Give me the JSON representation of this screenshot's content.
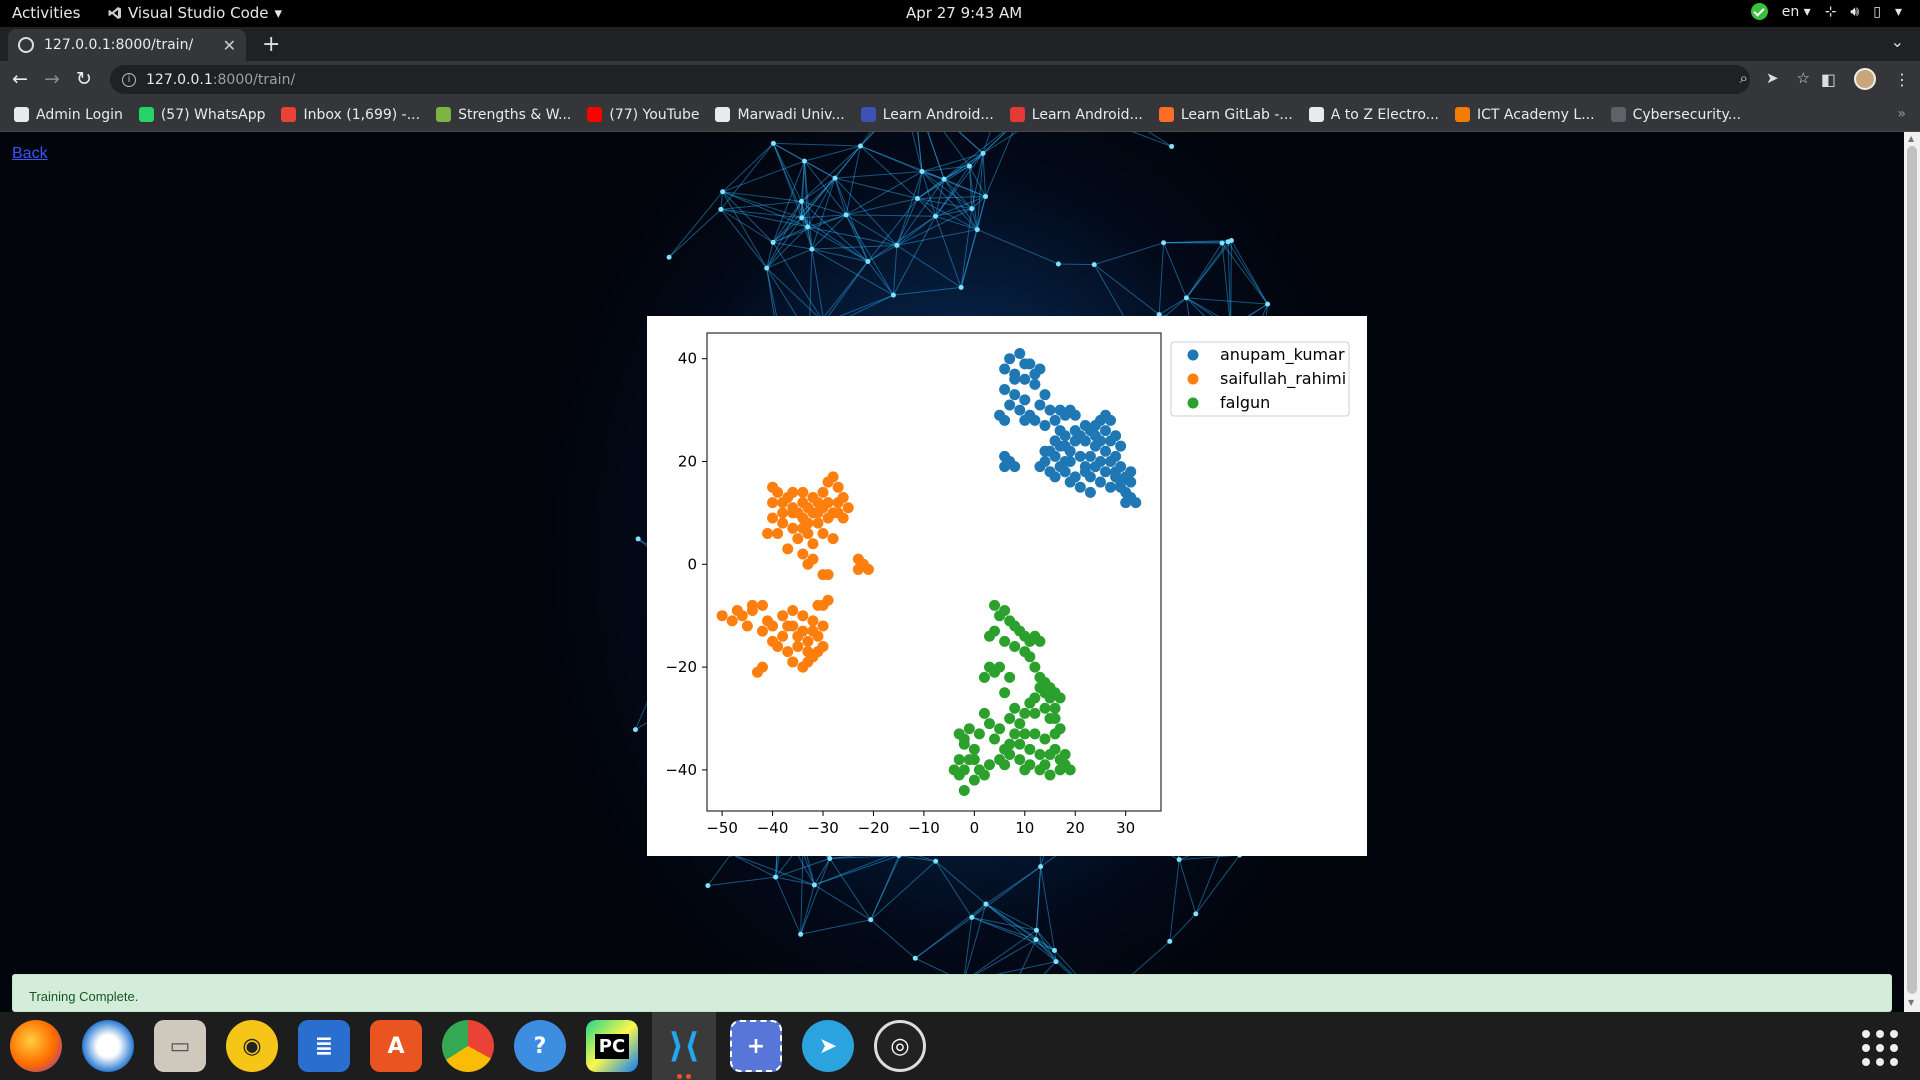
{
  "topbar": {
    "activities": "Activities",
    "app_name": "Visual Studio Code",
    "clock": "Apr 27  9:43 AM",
    "lang": "en"
  },
  "browser": {
    "tab_title": "127.0.0.1:8000/train/",
    "url_host": "127.0.0.1",
    "url_path": ":8000/train/",
    "bookmarks": [
      {
        "label": "Admin Login",
        "color": "#e8eaed"
      },
      {
        "label": "(57) WhatsApp",
        "color": "#25d366"
      },
      {
        "label": "Inbox (1,699) -...",
        "color": "#ea4335"
      },
      {
        "label": "Strengths & W...",
        "color": "#7cb342"
      },
      {
        "label": "(77) YouTube",
        "color": "#ff0000"
      },
      {
        "label": "Marwadi Univ...",
        "color": "#e8eaed"
      },
      {
        "label": "Learn Android...",
        "color": "#3f51b5"
      },
      {
        "label": "Learn Android...",
        "color": "#e53935"
      },
      {
        "label": "Learn GitLab -...",
        "color": "#fc6d26"
      },
      {
        "label": "A to Z Electro...",
        "color": "#e8eaed"
      },
      {
        "label": "ICT Academy L...",
        "color": "#f57c00"
      },
      {
        "label": "Cybersecurity...",
        "color": "#5f6368"
      }
    ]
  },
  "page": {
    "back_label": "Back",
    "alert": "Training Complete."
  },
  "chart_data": {
    "type": "scatter",
    "title": "",
    "xlabel": "",
    "ylabel": "",
    "xlim": [
      -53,
      37
    ],
    "ylim": [
      -48,
      45
    ],
    "xticks": [
      -50,
      -40,
      -30,
      -20,
      -10,
      0,
      10,
      20,
      30
    ],
    "yticks": [
      -40,
      -20,
      0,
      20,
      40
    ],
    "xtick_labels": [
      "−50",
      "−40",
      "−30",
      "−20",
      "−10",
      "0",
      "10",
      "20",
      "30"
    ],
    "ytick_labels": [
      "−40",
      "−20",
      "0",
      "20",
      "40"
    ],
    "legend_position": "outside-right",
    "grid": false,
    "series": [
      {
        "name": "anupam_kumar",
        "color": "#1f77b4",
        "points": [
          [
            7,
            40
          ],
          [
            9,
            41
          ],
          [
            11,
            39
          ],
          [
            13,
            38
          ],
          [
            8,
            37
          ],
          [
            10,
            36
          ],
          [
            12,
            35
          ],
          [
            6,
            34
          ],
          [
            8,
            33
          ],
          [
            10,
            32
          ],
          [
            7,
            31
          ],
          [
            9,
            30
          ],
          [
            11,
            29
          ],
          [
            13,
            31
          ],
          [
            14,
            33
          ],
          [
            15,
            30
          ],
          [
            16,
            28
          ],
          [
            17,
            30
          ],
          [
            18,
            29
          ],
          [
            19,
            30
          ],
          [
            20,
            29
          ],
          [
            14,
            27
          ],
          [
            12,
            28
          ],
          [
            10,
            28
          ],
          [
            6,
            28
          ],
          [
            5,
            29
          ],
          [
            8,
            36
          ],
          [
            6,
            38
          ],
          [
            10,
            39
          ],
          [
            12,
            37
          ],
          [
            6,
            21
          ],
          [
            7,
            20
          ],
          [
            8,
            19
          ],
          [
            6,
            19
          ],
          [
            15,
            22
          ],
          [
            16,
            21
          ],
          [
            17,
            23
          ],
          [
            18,
            20
          ],
          [
            19,
            22
          ],
          [
            20,
            24
          ],
          [
            21,
            25
          ],
          [
            22,
            24
          ],
          [
            23,
            26
          ],
          [
            24,
            27
          ],
          [
            25,
            28
          ],
          [
            26,
            26
          ],
          [
            27,
            24
          ],
          [
            26,
            22
          ],
          [
            25,
            20
          ],
          [
            24,
            19
          ],
          [
            22,
            18
          ],
          [
            20,
            17
          ],
          [
            19,
            16
          ],
          [
            21,
            15
          ],
          [
            23,
            14
          ],
          [
            25,
            16
          ],
          [
            27,
            15
          ],
          [
            28,
            17
          ],
          [
            29,
            16
          ],
          [
            30,
            14
          ],
          [
            31,
            13
          ],
          [
            32,
            12
          ],
          [
            30,
            12
          ],
          [
            29,
            15
          ],
          [
            28,
            18
          ],
          [
            30,
            17
          ],
          [
            31,
            16
          ],
          [
            18,
            18
          ],
          [
            17,
            19
          ],
          [
            16,
            17
          ],
          [
            15,
            18
          ],
          [
            14,
            20
          ],
          [
            13,
            19
          ],
          [
            14,
            22
          ],
          [
            16,
            24
          ],
          [
            18,
            25
          ],
          [
            20,
            26
          ],
          [
            22,
            27
          ],
          [
            24,
            25
          ],
          [
            26,
            29
          ],
          [
            27,
            28
          ],
          [
            28,
            25
          ],
          [
            29,
            23
          ],
          [
            23,
            21
          ],
          [
            24,
            23
          ],
          [
            21,
            21
          ],
          [
            22,
            19
          ],
          [
            18,
            23
          ],
          [
            19,
            20
          ],
          [
            17,
            26
          ],
          [
            25,
            24
          ],
          [
            26,
            18
          ],
          [
            27,
            20
          ],
          [
            28,
            21
          ],
          [
            23,
            17
          ],
          [
            31,
            18
          ],
          [
            29,
            19
          ]
        ]
      },
      {
        "name": "saifullah_rahimi",
        "color": "#ff7f0e",
        "points": [
          [
            -40,
            15
          ],
          [
            -39,
            14
          ],
          [
            -38,
            12
          ],
          [
            -37,
            13
          ],
          [
            -36,
            11
          ],
          [
            -35,
            10
          ],
          [
            -34,
            9
          ],
          [
            -33,
            8
          ],
          [
            -32,
            10
          ],
          [
            -31,
            12
          ],
          [
            -30,
            14
          ],
          [
            -29,
            16
          ],
          [
            -28,
            17
          ],
          [
            -27,
            15
          ],
          [
            -26,
            13
          ],
          [
            -25,
            11
          ],
          [
            -27,
            10
          ],
          [
            -29,
            9
          ],
          [
            -31,
            8
          ],
          [
            -33,
            6
          ],
          [
            -35,
            5
          ],
          [
            -36,
            7
          ],
          [
            -38,
            8
          ],
          [
            -40,
            9
          ],
          [
            -41,
            6
          ],
          [
            -39,
            6
          ],
          [
            -37,
            3
          ],
          [
            -34,
            2
          ],
          [
            -32,
            1
          ],
          [
            -30,
            -2
          ],
          [
            -29,
            -2
          ],
          [
            -33,
            0
          ],
          [
            -23,
            1
          ],
          [
            -22,
            0
          ],
          [
            -21,
            -1
          ],
          [
            -23,
            -1
          ],
          [
            -36,
            10
          ],
          [
            -34,
            12
          ],
          [
            -32,
            13
          ],
          [
            -30,
            11
          ],
          [
            -28,
            10
          ],
          [
            -26,
            9
          ],
          [
            -34,
            7
          ],
          [
            -30,
            6
          ],
          [
            -28,
            5
          ],
          [
            -32,
            4
          ],
          [
            -34,
            14
          ],
          [
            -36,
            14
          ],
          [
            -33,
            11
          ],
          [
            -31,
            10
          ],
          [
            -29,
            12
          ],
          [
            -27,
            12
          ],
          [
            -38,
            10
          ],
          [
            -40,
            12
          ],
          [
            -42,
            -8
          ],
          [
            -44,
            -9
          ],
          [
            -46,
            -10
          ],
          [
            -48,
            -11
          ],
          [
            -50,
            -10
          ],
          [
            -45,
            -12
          ],
          [
            -42,
            -13
          ],
          [
            -40,
            -12
          ],
          [
            -38,
            -10
          ],
          [
            -36,
            -9
          ],
          [
            -34,
            -10
          ],
          [
            -32,
            -11
          ],
          [
            -30,
            -12
          ],
          [
            -31,
            -14
          ],
          [
            -33,
            -15
          ],
          [
            -35,
            -16
          ],
          [
            -37,
            -17
          ],
          [
            -36,
            -19
          ],
          [
            -34,
            -20
          ],
          [
            -32,
            -18
          ],
          [
            -30,
            -16
          ],
          [
            -34,
            -13
          ],
          [
            -36,
            -12
          ],
          [
            -38,
            -14
          ],
          [
            -40,
            -15
          ],
          [
            -42,
            -20
          ],
          [
            -43,
            -21
          ],
          [
            -31,
            -8
          ],
          [
            -30,
            -8
          ],
          [
            -29,
            -7
          ],
          [
            -44,
            -8
          ],
          [
            -47,
            -9
          ],
          [
            -41,
            -11
          ],
          [
            -39,
            -16
          ],
          [
            -33,
            -17
          ],
          [
            -35,
            -14
          ],
          [
            -37,
            -12
          ],
          [
            -32,
            -13
          ],
          [
            -33,
            -19
          ],
          [
            -31,
            -17
          ]
        ]
      },
      {
        "name": "falgun",
        "color": "#2ca02c",
        "points": [
          [
            4,
            -8
          ],
          [
            5,
            -10
          ],
          [
            6,
            -9
          ],
          [
            7,
            -11
          ],
          [
            8,
            -12
          ],
          [
            9,
            -13
          ],
          [
            10,
            -14
          ],
          [
            11,
            -15
          ],
          [
            12,
            -14
          ],
          [
            13,
            -15
          ],
          [
            10,
            -17
          ],
          [
            8,
            -16
          ],
          [
            6,
            -15
          ],
          [
            4,
            -13
          ],
          [
            3,
            -14
          ],
          [
            11,
            -18
          ],
          [
            12,
            -20
          ],
          [
            3,
            -20
          ],
          [
            4,
            -21
          ],
          [
            5,
            -20
          ],
          [
            2,
            -22
          ],
          [
            13,
            -22
          ],
          [
            14,
            -23
          ],
          [
            15,
            -24
          ],
          [
            16,
            -25
          ],
          [
            17,
            -26
          ],
          [
            16,
            -28
          ],
          [
            15,
            -30
          ],
          [
            14,
            -28
          ],
          [
            12,
            -26
          ],
          [
            11,
            -27
          ],
          [
            10,
            -29
          ],
          [
            9,
            -31
          ],
          [
            8,
            -33
          ],
          [
            7,
            -35
          ],
          [
            6,
            -36
          ],
          [
            7,
            -30
          ],
          [
            5,
            -32
          ],
          [
            4,
            -34
          ],
          [
            2,
            -29
          ],
          [
            3,
            -31
          ],
          [
            1,
            -33
          ],
          [
            0,
            -36
          ],
          [
            -1,
            -38
          ],
          [
            -2,
            -40
          ],
          [
            -3,
            -41
          ],
          [
            -4,
            -40
          ],
          [
            -3,
            -38
          ],
          [
            -2,
            -35
          ],
          [
            -3,
            -33
          ],
          [
            -1,
            -32
          ],
          [
            -2,
            -34
          ],
          [
            0,
            -38
          ],
          [
            1,
            -40
          ],
          [
            2,
            -41
          ],
          [
            3,
            -39
          ],
          [
            5,
            -38
          ],
          [
            7,
            -37
          ],
          [
            9,
            -38
          ],
          [
            11,
            -39
          ],
          [
            13,
            -40
          ],
          [
            15,
            -41
          ],
          [
            17,
            -40
          ],
          [
            18,
            -39
          ],
          [
            19,
            -40
          ],
          [
            17,
            -38
          ],
          [
            15,
            -37
          ],
          [
            13,
            -37
          ],
          [
            11,
            -36
          ],
          [
            9,
            -35
          ],
          [
            12,
            -33
          ],
          [
            14,
            -34
          ],
          [
            16,
            -33
          ],
          [
            17,
            -32
          ],
          [
            16,
            -30
          ],
          [
            15,
            -26
          ],
          [
            14,
            -25
          ],
          [
            13,
            -24
          ],
          [
            12,
            -29
          ],
          [
            10,
            -33
          ],
          [
            8,
            -28
          ],
          [
            6,
            -25
          ],
          [
            7,
            -22
          ],
          [
            -2,
            -44
          ],
          [
            0,
            -42
          ],
          [
            16,
            -36
          ],
          [
            18,
            -37
          ],
          [
            14,
            -39
          ],
          [
            10,
            -40
          ],
          [
            6,
            -39
          ]
        ]
      }
    ]
  }
}
